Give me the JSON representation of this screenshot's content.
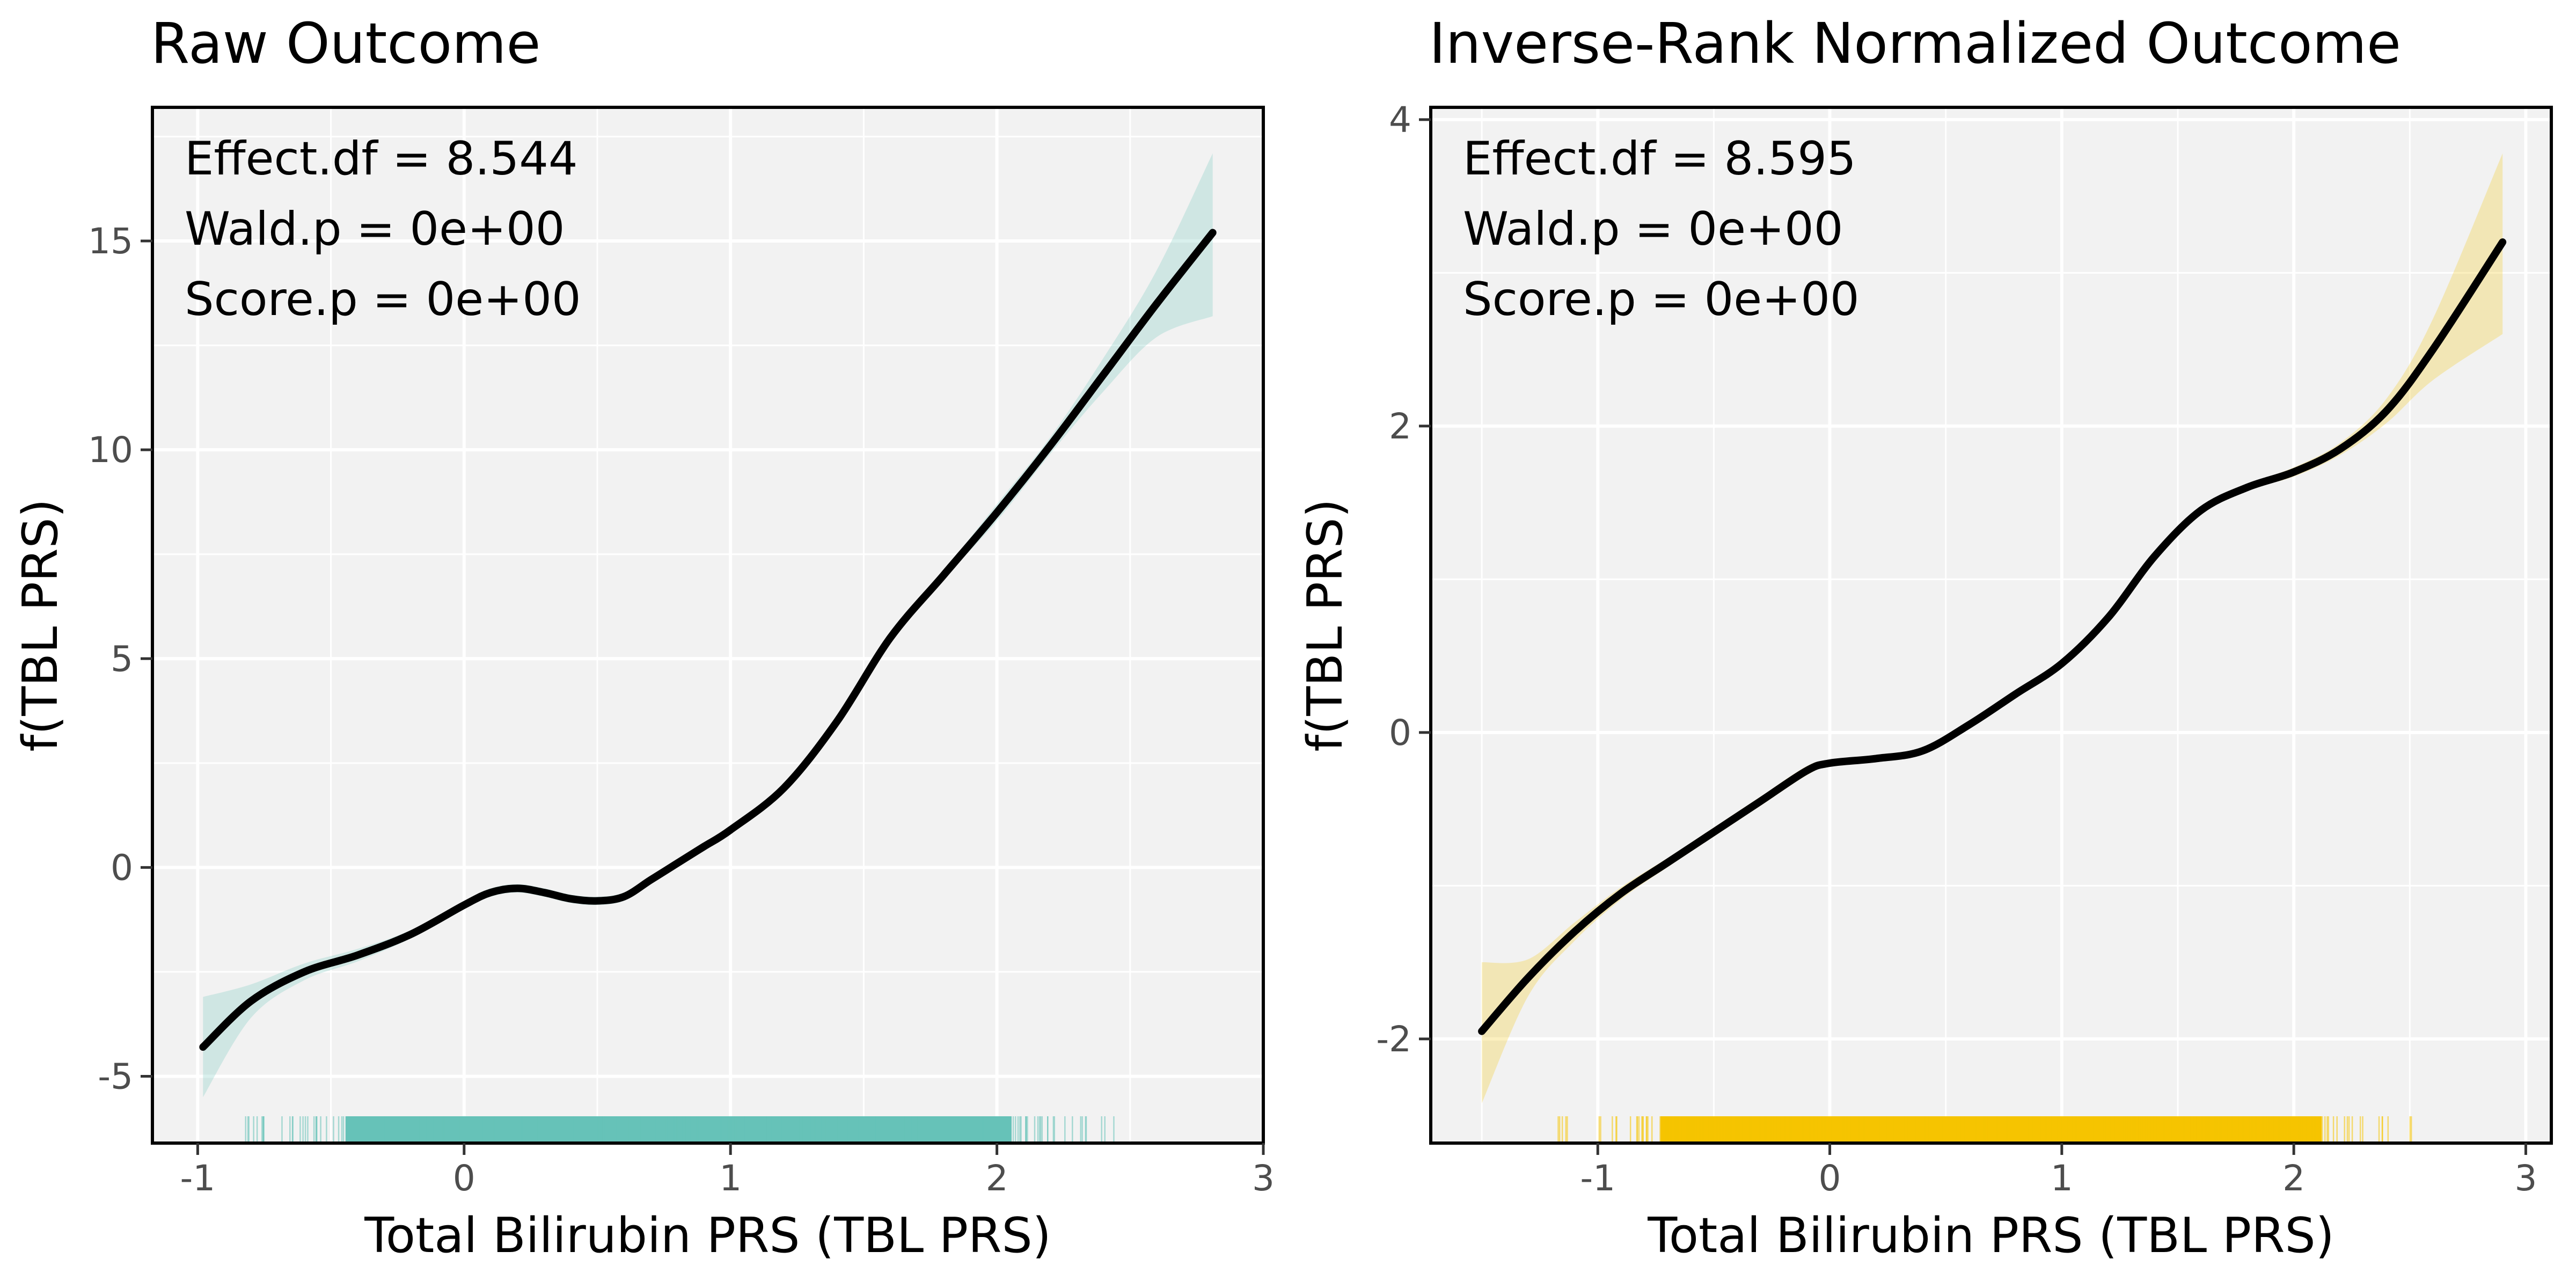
{
  "chart_data": [
    {
      "type": "line",
      "title": "Raw Outcome",
      "xlabel": "Total Bilirubin PRS (TBL PRS)",
      "ylabel": "f(TBL PRS)",
      "xlim": [
        -1.17,
        3.0
      ],
      "ylim": [
        -6.6,
        18.2
      ],
      "xticks": [
        -1,
        0,
        1,
        2,
        3
      ],
      "xtick_labels": [
        "-1",
        "0",
        "1",
        "2",
        "3"
      ],
      "yticks": [
        -5,
        0,
        5,
        10,
        15
      ],
      "ytick_labels": [
        "-5",
        "0",
        "5",
        "10",
        "15"
      ],
      "grid": true,
      "band_color": "#66c2b8",
      "line_color": "#000000",
      "annotations": [
        "Effect.df = 8.544",
        "Wald.p = 0e+00",
        "Score.p = 0e+00"
      ],
      "rug_range": [
        -0.84,
        2.45
      ],
      "series": [
        {
          "x": [
            -0.98,
            -0.8,
            -0.6,
            -0.4,
            -0.2,
            0.0,
            0.1,
            0.2,
            0.3,
            0.4,
            0.5,
            0.6,
            0.7,
            0.8,
            0.9,
            1.0,
            1.2,
            1.4,
            1.6,
            1.8,
            2.0,
            2.2,
            2.4,
            2.6,
            2.81
          ],
          "y": [
            -4.3,
            -3.2,
            -2.5,
            -2.1,
            -1.6,
            -0.9,
            -0.6,
            -0.5,
            -0.6,
            -0.75,
            -0.8,
            -0.7,
            -0.3,
            0.1,
            0.5,
            0.9,
            1.9,
            3.5,
            5.5,
            7.0,
            8.5,
            10.1,
            11.8,
            13.5,
            15.2
          ],
          "lower": [
            -5.5,
            -3.6,
            -2.7,
            -2.25,
            -1.7,
            -1.0,
            -0.7,
            -0.6,
            -0.7,
            -0.85,
            -0.9,
            -0.8,
            -0.4,
            0.0,
            0.4,
            0.8,
            1.8,
            3.4,
            5.4,
            6.9,
            8.3,
            9.9,
            11.4,
            12.7,
            13.2
          ],
          "upper": [
            -3.1,
            -2.8,
            -2.3,
            -1.95,
            -1.5,
            -0.8,
            -0.5,
            -0.4,
            -0.5,
            -0.65,
            -0.7,
            -0.6,
            -0.2,
            0.2,
            0.6,
            1.0,
            2.0,
            3.6,
            5.6,
            7.1,
            8.7,
            10.3,
            12.2,
            14.3,
            17.1
          ]
        }
      ]
    },
    {
      "type": "line",
      "title": "Inverse-Rank Normalized Outcome",
      "xlabel": "Total Bilirubin PRS (TBL PRS)",
      "ylabel": "f(TBL PRS)",
      "xlim": [
        -1.72,
        3.11
      ],
      "ylim": [
        -2.68,
        4.08
      ],
      "xticks": [
        -1,
        0,
        1,
        2,
        3
      ],
      "xtick_labels": [
        "-1",
        "0",
        "1",
        "2",
        "3"
      ],
      "yticks": [
        -2,
        0,
        2,
        4
      ],
      "ytick_labels": [
        "-2",
        "0",
        "2",
        "4"
      ],
      "grid": true,
      "band_color": "#f5c400",
      "line_color": "#000000",
      "annotations": [
        "Effect.df = 8.595",
        "Wald.p = 0e+00",
        "Score.p = 0e+00"
      ],
      "rug_range": [
        -1.18,
        2.57
      ],
      "series": [
        {
          "x": [
            -1.5,
            -1.3,
            -1.1,
            -0.9,
            -0.7,
            -0.5,
            -0.3,
            -0.1,
            0.0,
            0.2,
            0.4,
            0.6,
            0.8,
            1.0,
            1.2,
            1.4,
            1.6,
            1.8,
            2.0,
            2.2,
            2.4,
            2.6,
            2.9
          ],
          "y": [
            -1.95,
            -1.6,
            -1.3,
            -1.05,
            -0.85,
            -0.65,
            -0.45,
            -0.25,
            -0.2,
            -0.17,
            -0.12,
            0.05,
            0.25,
            0.45,
            0.75,
            1.15,
            1.45,
            1.6,
            1.7,
            1.85,
            2.1,
            2.5,
            3.2
          ],
          "lower": [
            -2.42,
            -1.72,
            -1.36,
            -1.09,
            -0.88,
            -0.68,
            -0.48,
            -0.28,
            -0.22,
            -0.19,
            -0.14,
            0.03,
            0.23,
            0.43,
            0.73,
            1.13,
            1.43,
            1.58,
            1.67,
            1.81,
            2.02,
            2.3,
            2.6
          ],
          "upper": [
            -1.5,
            -1.48,
            -1.24,
            -1.01,
            -0.82,
            -0.62,
            -0.42,
            -0.22,
            -0.18,
            -0.15,
            -0.1,
            0.07,
            0.27,
            0.47,
            0.77,
            1.17,
            1.47,
            1.62,
            1.73,
            1.89,
            2.18,
            2.7,
            3.78
          ]
        }
      ]
    }
  ]
}
